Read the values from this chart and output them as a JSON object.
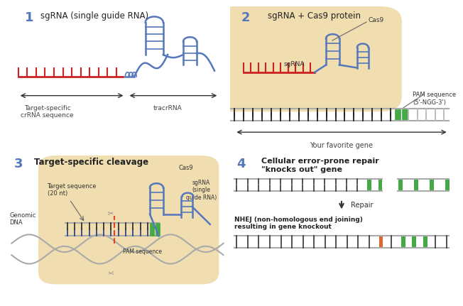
{
  "bg_color": "#ffffff",
  "blue_rna": "#5577bb",
  "red_color": "#cc2222",
  "green_color": "#44aa44",
  "orange_color": "#dd6633",
  "black_color": "#222222",
  "gray_color": "#aaaaaa",
  "tan_color": "#f0ddb0",
  "arrow_color": "#333333",
  "title1": "sgRNA (single guide RNA)",
  "title2": "sgRNA + Cas9 protein",
  "title3": "Target-specific cleavage",
  "title4": "Cellular error-prone repair\n\"knocks out\" gene",
  "label_crRNA": "Target-specific\ncrRNA sequence",
  "label_tracrRNA": "tracrRNA",
  "label_cas9_2": "Cas9",
  "label_sgrna_2": "sgRNA",
  "label_pam_2": "PAM sequence\n(5'-NGG-3')",
  "label_gene_2": "Your favorite gene",
  "label_genomic": "Genomic\nDNA",
  "label_target_seq": "Target sequence\n(20 nt)",
  "label_cas9_3": "Cas9",
  "label_sgrna_3": "sgRNA\n(single\nguide RNA)",
  "label_pam_3": "PAM sequence",
  "label_nhej": "NHEJ (non-homologous end joining)\nresulting in gene knockout",
  "label_repair": "Repair"
}
